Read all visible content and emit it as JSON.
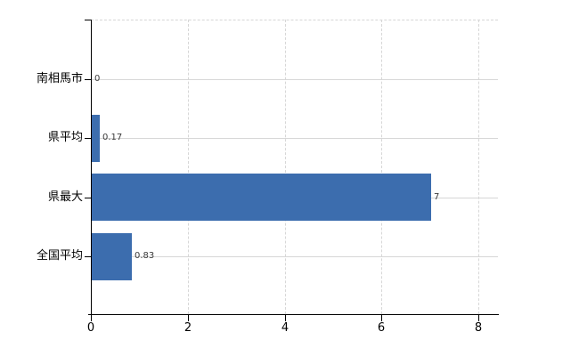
{
  "chart_data": {
    "type": "bar",
    "orientation": "horizontal",
    "title": "",
    "categories": [
      "南相馬市",
      "県平均",
      "県最大",
      "全国平均"
    ],
    "values": [
      0,
      0.17,
      7,
      0.83
    ],
    "value_labels": [
      "0",
      "0.17",
      "7",
      "0.83"
    ],
    "x_axis": {
      "ticks": [
        0,
        2,
        4,
        6,
        8
      ],
      "tick_labels": [
        "0",
        "2",
        "4",
        "6",
        "8"
      ],
      "range": [
        0,
        8.4
      ]
    },
    "legend_position": "none",
    "grid": {
      "horizontal_style": "solid",
      "vertical_style": "dashed",
      "top_border_style": "dashed"
    },
    "colors": {
      "bar": "#3c6dae",
      "axis": "#000000",
      "gridline": "#d7d7d7",
      "value_text": "#3a3a3a",
      "label_text": "#000000"
    }
  }
}
